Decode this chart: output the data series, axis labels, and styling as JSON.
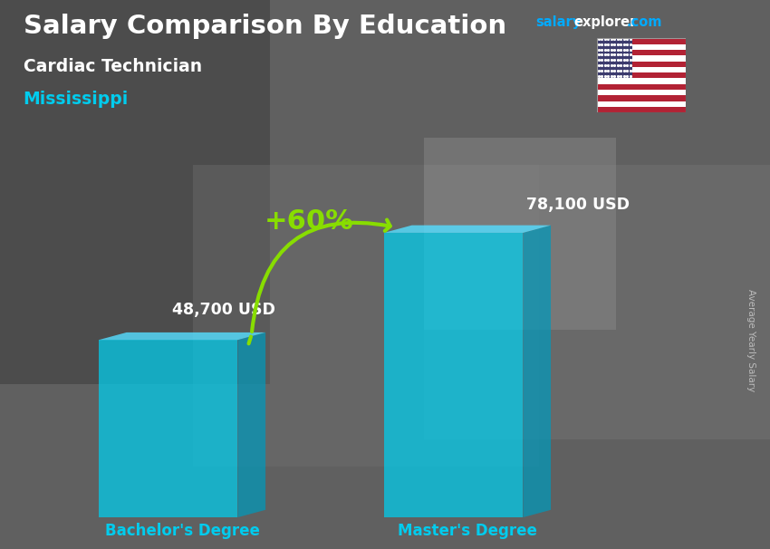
{
  "title": "Salary Comparison By Education",
  "subtitle": "Cardiac Technician",
  "location": "Mississippi",
  "categories": [
    "Bachelor's Degree",
    "Master's Degree"
  ],
  "values": [
    48700,
    78100
  ],
  "value_labels": [
    "48,700 USD",
    "78,100 USD"
  ],
  "pct_change": "+60%",
  "bar_color_face": "#00CFEF",
  "bar_color_side": "#0099BB",
  "bar_color_top": "#55DDFF",
  "bar_alpha": 0.72,
  "bg_color": "#686868",
  "title_color": "#FFFFFF",
  "subtitle_color": "#FFFFFF",
  "location_color": "#00CCEE",
  "salary_label_color": "#FFFFFF",
  "xlabel_color": "#00CCEE",
  "pct_color": "#88DD00",
  "arrow_color": "#88DD00",
  "site_salary_color": "#00AAFF",
  "site_explorer_color": "#FFFFFF",
  "site_com_color": "#00AAFF",
  "rotated_label": "Average Yearly Salary",
  "rotated_label_color": "#BBBBBB"
}
